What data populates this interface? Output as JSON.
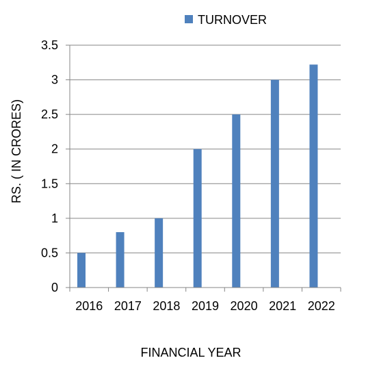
{
  "chart_data": {
    "type": "bar",
    "title": "",
    "xlabel": "FINANCIAL YEAR",
    "ylabel": "RS. ( IN CRORES)",
    "categories": [
      "2016",
      "2017",
      "2018",
      "2019",
      "2020",
      "2021",
      "2022"
    ],
    "series": [
      {
        "name": "TURNOVER",
        "values": [
          0.5,
          0.8,
          1.0,
          2.0,
          2.5,
          3.0,
          3.22
        ],
        "color": "#4f81bd"
      }
    ],
    "ylim": [
      0,
      3.5
    ],
    "yticks": [
      "0",
      "0.5",
      "1",
      "1.5",
      "2",
      "2.5",
      "3",
      "3.5"
    ],
    "grid": true,
    "legend_position": "top"
  }
}
